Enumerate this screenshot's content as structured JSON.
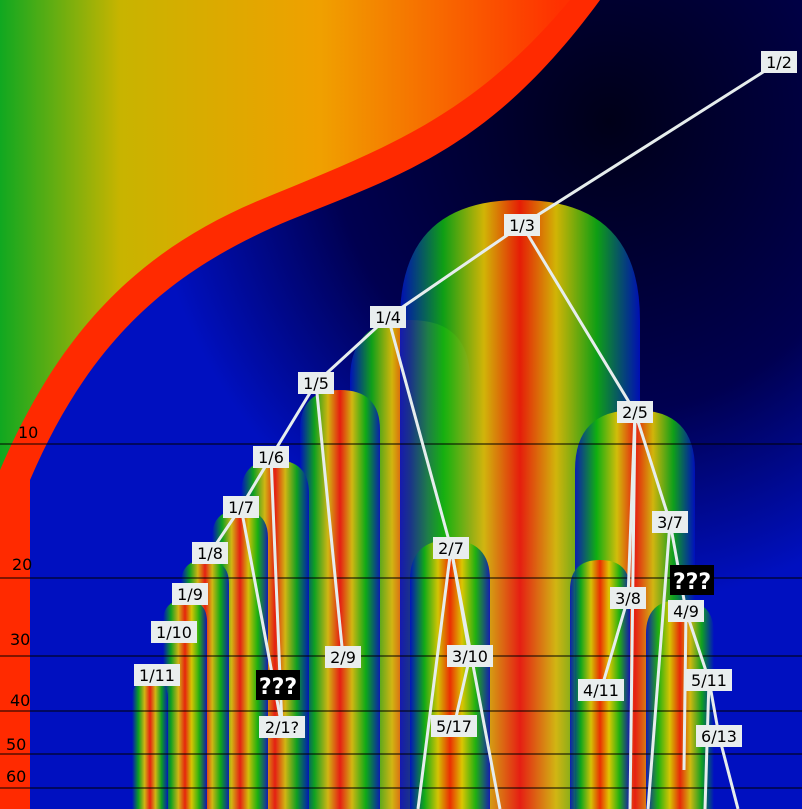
{
  "axis_labels": [
    "10",
    "20",
    "30",
    "40",
    "50",
    "60"
  ],
  "nodes": [
    {
      "id": "n_1_2",
      "text": "1/2"
    },
    {
      "id": "n_1_3",
      "text": "1/3"
    },
    {
      "id": "n_1_4",
      "text": "1/4"
    },
    {
      "id": "n_1_5",
      "text": "1/5"
    },
    {
      "id": "n_1_6",
      "text": "1/6"
    },
    {
      "id": "n_1_7",
      "text": "1/7"
    },
    {
      "id": "n_1_8",
      "text": "1/8"
    },
    {
      "id": "n_1_9",
      "text": "1/9"
    },
    {
      "id": "n_1_10",
      "text": "1/10"
    },
    {
      "id": "n_1_11",
      "text": "1/11"
    },
    {
      "id": "n_2_5",
      "text": "2/5"
    },
    {
      "id": "n_2_7",
      "text": "2/7"
    },
    {
      "id": "n_2_9",
      "text": "2/9"
    },
    {
      "id": "n_2_11",
      "text": "2/1?"
    },
    {
      "id": "n_3_7",
      "text": "3/7"
    },
    {
      "id": "n_3_8",
      "text": "3/8"
    },
    {
      "id": "n_3_10",
      "text": "3/10"
    },
    {
      "id": "n_4_9",
      "text": "4/9"
    },
    {
      "id": "n_4_11",
      "text": "4/11"
    },
    {
      "id": "n_5_11",
      "text": "5/11"
    },
    {
      "id": "n_5_17",
      "text": "5/17"
    },
    {
      "id": "n_6_13",
      "text": "6/13"
    }
  ],
  "unknown_markers": [
    "???",
    "???"
  ],
  "colors": {
    "black": "#000000",
    "dark_blue": "#000060",
    "blue": "#0010d0",
    "green": "#10b010",
    "yellow": "#e8c800",
    "orange": "#ff7a00",
    "red": "#ff2000",
    "line": "#e6eded"
  }
}
